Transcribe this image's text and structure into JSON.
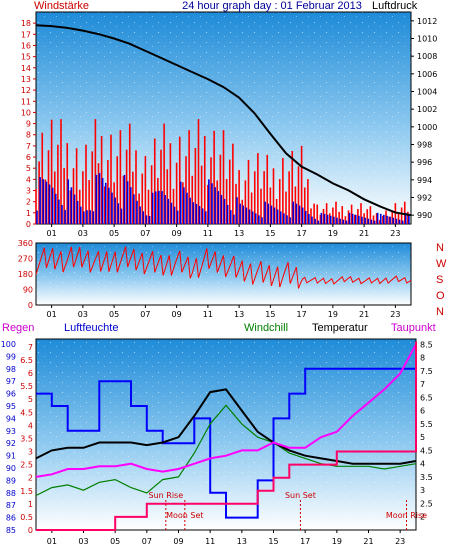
{
  "header": {
    "title": "24 hour graph day : 01 Februar 2013",
    "left_label": "Windstärke",
    "right_label": "Luftdruck"
  },
  "hours": [
    "01",
    "03",
    "05",
    "07",
    "09",
    "11",
    "13",
    "15",
    "17",
    "19",
    "21",
    "23"
  ],
  "colors": {
    "wind_gust": "#ff0000",
    "wind_avg": "#0000dd",
    "pressure": "#000000",
    "direction": "#ff0000",
    "humidity": "#0000ff",
    "windchill": "#008000",
    "temperature": "#000000",
    "dewpoint": "#ff00ff",
    "rain": "#ff0066",
    "label_red": "#cc0000",
    "label_blue": "#0000cc",
    "label_green": "#008000",
    "label_magenta": "#cc00cc"
  },
  "chart_data": [
    {
      "type": "line",
      "name": "wind-pressure",
      "x_hours": [
        0,
        1,
        2,
        3,
        4,
        5,
        6,
        7,
        8,
        9,
        10,
        11,
        12,
        13,
        14,
        15,
        16,
        17,
        18,
        19,
        20,
        21,
        22,
        23,
        24
      ],
      "left_axis": {
        "label": "Windstärke",
        "ylim": [
          0,
          19
        ],
        "ticks": [
          0,
          1,
          2,
          3,
          4,
          5,
          6,
          7,
          8,
          9,
          10,
          11,
          12,
          13,
          14,
          15,
          16,
          17,
          18
        ]
      },
      "right_axis": {
        "label": "Luftdruck",
        "ylim": [
          989,
          1013
        ],
        "ticks": [
          990,
          992,
          994,
          996,
          998,
          1000,
          1002,
          1004,
          1006,
          1008,
          1010,
          1012
        ]
      },
      "series": [
        {
          "key": "pressure",
          "axis": "right",
          "values": [
            1011.5,
            1011.4,
            1011.2,
            1010.9,
            1010.5,
            1010,
            1009.4,
            1008.6,
            1007.8,
            1007,
            1006.2,
            1005.4,
            1004.5,
            1003.3,
            1001.5,
            999.2,
            997,
            995.5,
            994.6,
            993.6,
            992.8,
            991.8,
            991,
            990.3,
            990
          ]
        },
        {
          "key": "wind_gust",
          "axis": "left",
          "values": [
            9,
            10,
            9,
            7,
            10,
            9,
            9,
            7,
            9,
            9,
            9,
            10,
            9,
            6,
            7,
            6,
            7,
            7,
            2,
            2,
            2,
            2,
            1,
            2,
            2
          ]
        },
        {
          "key": "wind_avg",
          "axis": "left",
          "values": [
            4,
            5,
            4,
            2,
            5,
            5,
            4,
            2,
            4,
            4,
            3,
            4,
            4,
            2,
            2,
            2,
            2,
            2,
            1,
            1,
            1,
            1,
            1,
            1,
            1
          ]
        }
      ]
    },
    {
      "type": "line",
      "name": "wind-direction",
      "x_hours": [
        0,
        1,
        2,
        3,
        4,
        5,
        6,
        7,
        8,
        9,
        10,
        11,
        12,
        13,
        14,
        15,
        16,
        17,
        18,
        19,
        20,
        21,
        22,
        23,
        24
      ],
      "left_axis": {
        "ylim": [
          0,
          360
        ],
        "ticks": [
          0,
          90,
          180,
          270,
          360
        ]
      },
      "right_axis": {
        "labels": [
          "N",
          "W",
          "S",
          "O",
          "N"
        ]
      },
      "series": [
        {
          "key": "direction",
          "values": [
            250,
            270,
            260,
            280,
            240,
            260,
            270,
            250,
            230,
            250,
            210,
            260,
            240,
            200,
            190,
            170,
            180,
            150,
            140,
            140,
            150,
            140,
            140,
            150,
            140
          ]
        }
      ]
    },
    {
      "type": "line",
      "name": "humidity-temperature",
      "x_hours": [
        0,
        1,
        2,
        3,
        4,
        5,
        6,
        7,
        8,
        9,
        10,
        11,
        12,
        13,
        14,
        15,
        16,
        17,
        18,
        19,
        20,
        21,
        22,
        23,
        24
      ],
      "legend": [
        "Regen",
        "Luftfeuchte",
        "Windchill",
        "Temperatur",
        "Taupunkt"
      ],
      "left_axis_rain": {
        "label": "Regen",
        "ylim": [
          0,
          7.3
        ],
        "ticks": [
          0,
          0.5,
          1,
          1.5,
          2,
          2.5,
          3,
          3.5,
          4,
          4.5,
          5,
          5.5,
          6,
          6.5,
          7
        ]
      },
      "left_axis_humidity": {
        "label": "Luftfeuchte",
        "ylim": [
          85,
          100.4
        ],
        "ticks": [
          85,
          86,
          87,
          88,
          89,
          90,
          91,
          92,
          93,
          94,
          95,
          96,
          97,
          98,
          99,
          100
        ]
      },
      "right_axis": {
        "ylim": [
          1.5,
          8.7
        ],
        "ticks": [
          2,
          2.5,
          3,
          3.5,
          4,
          4.5,
          5,
          5.5,
          6,
          6.5,
          7,
          7.5,
          8,
          8.5
        ]
      },
      "series": [
        {
          "key": "humidity",
          "axis": "humidity",
          "values": [
            96,
            95,
            93,
            93,
            97,
            97,
            95,
            93,
            92,
            92,
            94,
            88,
            86,
            86,
            89,
            94,
            96,
            98,
            98,
            98,
            98,
            98,
            98,
            98,
            98
          ]
        },
        {
          "key": "windchill",
          "axis": "right",
          "values": [
            2.8,
            3.1,
            3.2,
            3.0,
            3.3,
            3.4,
            3.1,
            2.9,
            3.4,
            3.5,
            4.4,
            5.5,
            6.2,
            5.5,
            5.0,
            4.8,
            4.4,
            4.2,
            4.0,
            3.9,
            3.9,
            3.9,
            3.8,
            3.9,
            4.0
          ]
        },
        {
          "key": "temperature",
          "axis": "right",
          "values": [
            4.2,
            4.5,
            4.6,
            4.6,
            4.8,
            4.8,
            4.8,
            4.7,
            4.8,
            5.0,
            5.8,
            6.7,
            6.8,
            6.0,
            5.2,
            4.8,
            4.5,
            4.3,
            4.2,
            4.1,
            4.0,
            4.0,
            4.0,
            4.0,
            4.1
          ]
        },
        {
          "key": "dewpoint",
          "axis": "right",
          "values": [
            3.5,
            3.6,
            3.8,
            3.8,
            3.9,
            3.9,
            4.0,
            3.8,
            3.7,
            3.8,
            4.0,
            4.2,
            4.3,
            4.5,
            4.5,
            4.8,
            4.6,
            4.6,
            5.0,
            5.2,
            5.8,
            6.3,
            6.8,
            7.4,
            8.5
          ]
        },
        {
          "key": "rain",
          "axis": "rain",
          "values": [
            0,
            0,
            0,
            0,
            0,
            0.5,
            0.5,
            1,
            1,
            1,
            1,
            1,
            1,
            1,
            1.5,
            2,
            2.5,
            2.5,
            2.5,
            3,
            3,
            3,
            3,
            3,
            7.2
          ]
        }
      ],
      "annotations": [
        {
          "text": "Sun Rise",
          "x_hour": 8.2
        },
        {
          "text": "Moon Set",
          "x_hour": 9.4
        },
        {
          "text": "Sun Set",
          "x_hour": 16.7
        },
        {
          "text": "Moon Rise",
          "x_hour": 23.4
        }
      ]
    }
  ]
}
